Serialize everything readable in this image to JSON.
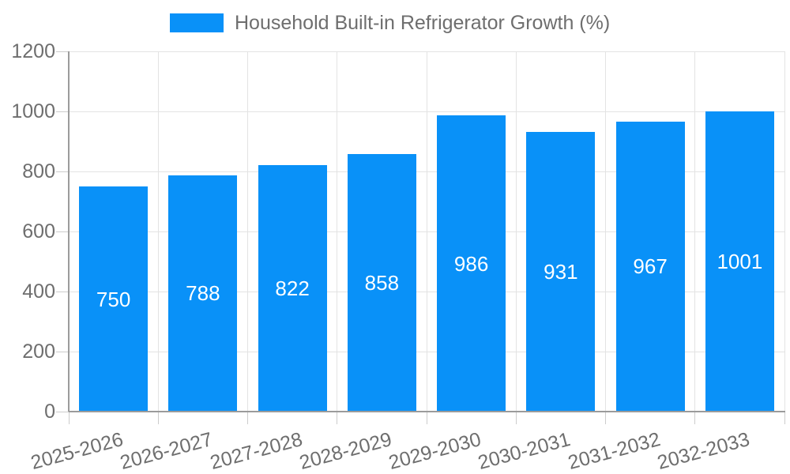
{
  "legend": {
    "label": "Household Built-in Refrigerator Growth (%)"
  },
  "chart_data": {
    "type": "bar",
    "title": "Household Built-in Refrigerator Growth (%)",
    "categories": [
      "2025-2026",
      "2026-2027",
      "2027-2028",
      "2028-2029",
      "2029-2030",
      "2030-2031",
      "2031-2032",
      "2032-2033"
    ],
    "values": [
      750,
      788,
      822,
      858,
      986,
      931,
      967,
      1001
    ],
    "value_labels": [
      "750",
      "788",
      "822",
      "858",
      "986",
      "931",
      "967",
      "1001"
    ],
    "xlabel": "",
    "ylabel": "",
    "ylim": [
      0,
      1200
    ],
    "yticks": [
      0,
      200,
      400,
      600,
      800,
      1000,
      1200
    ],
    "grid": true,
    "legend_position": "top-center",
    "value_labels_inside_bars": true,
    "colors": {
      "bar": "#0991F8",
      "grid": "#E3E3E3",
      "axis": "#9B9B9B",
      "tick": "#CCCCCC",
      "label_text": "#6E6E6E",
      "value_text": "#FFFFFF",
      "background": "#FFFFFF"
    }
  }
}
